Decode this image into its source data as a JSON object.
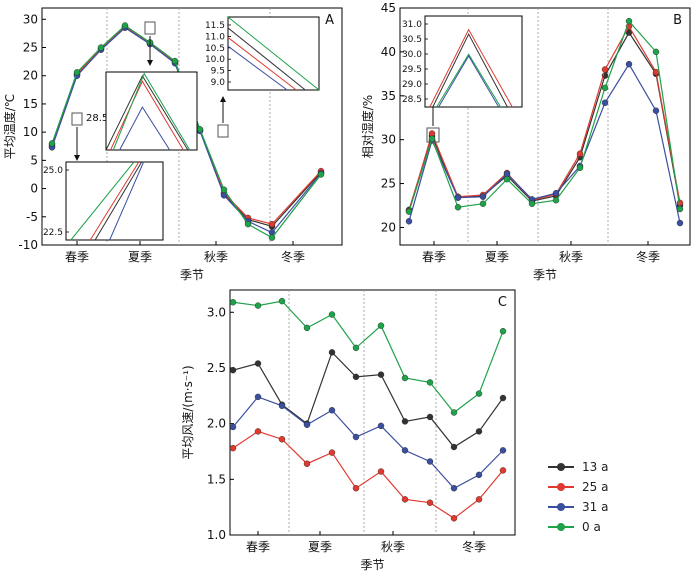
{
  "colors": {
    "13 a": "#333333",
    "25 a": "#e03a30",
    "31 a": "#3b4fa0",
    "0 a": "#1ea24a"
  },
  "legend": {
    "items": [
      {
        "label": "13 a",
        "color": "#333333"
      },
      {
        "label": "25 a",
        "color": "#e03a30"
      },
      {
        "label": "31 a",
        "color": "#3b4fa0"
      },
      {
        "label": "0 a",
        "color": "#1ea24a"
      }
    ]
  },
  "chart_data": [
    {
      "panel": "A",
      "type": "line",
      "ylabel": "平均温度/℃",
      "xlabel": "季节",
      "season_labels": [
        "春季",
        "夏季",
        "秋季",
        "冬季"
      ],
      "ylim": [
        -10,
        32
      ],
      "yticks": [
        -10,
        -5,
        0,
        5,
        10,
        15,
        20,
        25,
        30
      ],
      "series": [
        {
          "name": "13 a",
          "values": [
            7.5,
            20.2,
            24.7,
            28.6,
            25.7,
            22.3,
            10.3,
            -0.9,
            -5.5,
            -6.7,
            2.9
          ]
        },
        {
          "name": "25 a",
          "values": [
            7.8,
            20.3,
            24.8,
            28.7,
            25.8,
            22.4,
            10.4,
            -0.8,
            -5.2,
            -6.3,
            3.1
          ]
        },
        {
          "name": "31 a",
          "values": [
            7.3,
            20.0,
            24.6,
            28.5,
            25.6,
            22.2,
            10.2,
            -1.2,
            -5.8,
            -7.8,
            2.7
          ]
        },
        {
          "name": "0 a",
          "values": [
            8.0,
            20.6,
            25.0,
            28.9,
            25.9,
            22.6,
            10.5,
            -0.2,
            -6.3,
            -8.7,
            2.5
          ]
        }
      ],
      "insets": [
        {
          "yticks": [
            "25.0",
            "22.5"
          ],
          "label_near": "28.5"
        },
        {
          "yticks": [
            "11.5",
            "11.0",
            "10.5",
            "10.0",
            "9.5",
            "9.0"
          ]
        }
      ]
    },
    {
      "panel": "B",
      "type": "line",
      "ylabel": "相对湿度/%",
      "xlabel": "季节",
      "season_labels": [
        "春季",
        "夏季",
        "秋季",
        "冬季"
      ],
      "ylim": [
        18,
        45
      ],
      "yticks": [
        20,
        25,
        30,
        35,
        40,
        45
      ],
      "series": [
        {
          "name": "13 a",
          "values": [
            22.0,
            30.4,
            23.4,
            23.6,
            25.9,
            23.0,
            23.6,
            28.0,
            37.3,
            42.2,
            37.5,
            22.5
          ]
        },
        {
          "name": "25 a",
          "values": [
            21.9,
            30.7,
            23.5,
            23.7,
            26.2,
            23.1,
            23.8,
            28.4,
            38.0,
            42.9,
            37.7,
            22.8
          ]
        },
        {
          "name": "31 a",
          "values": [
            20.7,
            29.9,
            23.4,
            23.5,
            26.1,
            23.2,
            23.9,
            27.0,
            34.2,
            38.6,
            33.3,
            20.5
          ]
        },
        {
          "name": "0 a",
          "values": [
            21.8,
            30.1,
            22.3,
            22.7,
            25.5,
            22.7,
            23.1,
            26.8,
            35.9,
            43.5,
            40.0,
            22.1
          ]
        }
      ],
      "inset": {
        "yticks": [
          "31.0",
          "30.5",
          "30.0",
          "29.5",
          "29.0",
          "28.5"
        ]
      }
    },
    {
      "panel": "C",
      "type": "line",
      "ylabel": "平均风速/(m·s⁻¹)",
      "xlabel": "季节",
      "season_labels": [
        "春季",
        "夏季",
        "秋季",
        "冬季"
      ],
      "ylim": [
        1.0,
        3.2
      ],
      "yticks": [
        "1.0",
        "1.5",
        "2.0",
        "2.5",
        "3.0"
      ],
      "series": [
        {
          "name": "13 a",
          "values": [
            2.48,
            2.54,
            2.17,
            2.0,
            2.64,
            2.42,
            2.44,
            2.02,
            2.06,
            1.79,
            1.93,
            2.23
          ]
        },
        {
          "name": "25 a",
          "values": [
            1.78,
            1.93,
            1.86,
            1.64,
            1.74,
            1.42,
            1.57,
            1.32,
            1.29,
            1.15,
            1.32,
            1.58
          ]
        },
        {
          "name": "31 a",
          "values": [
            1.97,
            2.24,
            2.16,
            1.99,
            2.12,
            1.88,
            1.98,
            1.76,
            1.66,
            1.42,
            1.54,
            1.76
          ]
        },
        {
          "name": "0 a",
          "values": [
            3.09,
            3.06,
            3.1,
            2.86,
            2.98,
            2.68,
            2.88,
            2.41,
            2.37,
            2.1,
            2.27,
            2.83
          ]
        }
      ]
    }
  ]
}
